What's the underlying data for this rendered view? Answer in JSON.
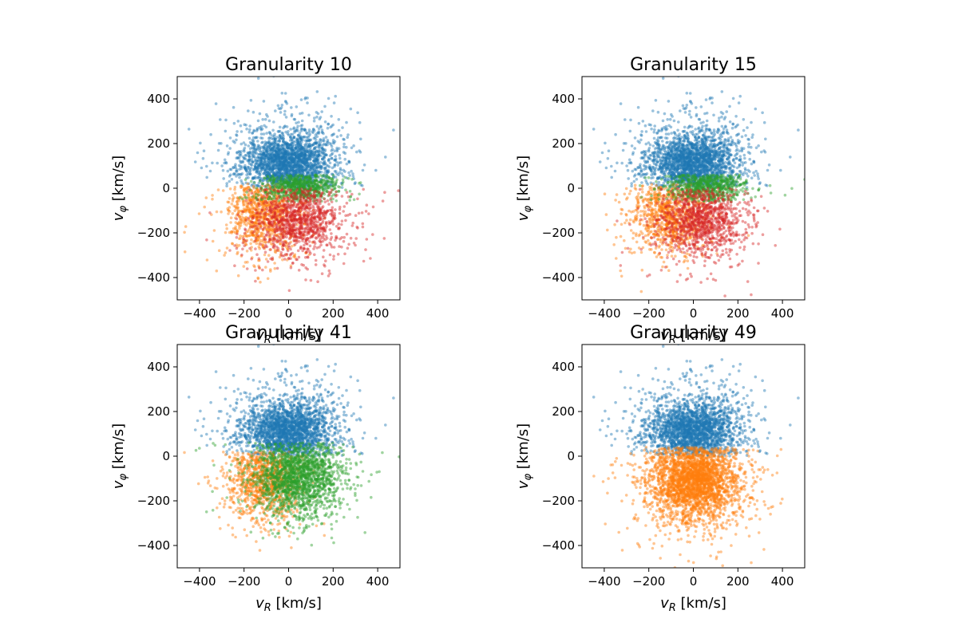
{
  "colors": {
    "cluster_0": "#1f77b4",
    "cluster_1": "#ff7f0e",
    "cluster_2": "#2ca02c",
    "cluster_3": "#d62728"
  },
  "chart_data": [
    {
      "type": "scatter",
      "title": "Granularity 10",
      "xlabel": "v_R [km/s]",
      "ylabel": "v_φ [km/s]",
      "xlim": [
        -500,
        500
      ],
      "ylim": [
        -500,
        500
      ],
      "xticks": [
        -400,
        -200,
        0,
        200,
        400
      ],
      "yticks": [
        -400,
        -200,
        0,
        200,
        400
      ],
      "grid": false,
      "series": [
        {
          "color": "#1f77b4",
          "opacity": 0.45,
          "n": 2200,
          "mean_x": 0,
          "mean_y": 115,
          "sd_x": 95,
          "sd_y": 65,
          "sd_x_tail": 160,
          "sd_y_tail": 140,
          "y_min": 0
        },
        {
          "color": "#ff7f0e",
          "opacity": 0.45,
          "n": 900,
          "mean_x": -110,
          "mean_y": -110,
          "sd_x": 80,
          "sd_y": 90,
          "sd_x_tail": 120,
          "sd_y_tail": 120,
          "y_max": 20,
          "x_max": 60
        },
        {
          "color": "#2ca02c",
          "opacity": 0.45,
          "n": 700,
          "mean_x": 60,
          "mean_y": 5,
          "sd_x": 80,
          "sd_y": 35,
          "sd_x_tail": 130,
          "sd_y_tail": 60,
          "y_min": -60,
          "y_max": 60
        },
        {
          "color": "#d62728",
          "opacity": 0.45,
          "n": 1100,
          "mean_x": 40,
          "mean_y": -140,
          "sd_x": 90,
          "sd_y": 70,
          "sd_x_tail": 140,
          "sd_y_tail": 130,
          "y_max": 0
        }
      ]
    },
    {
      "type": "scatter",
      "title": "Granularity 15",
      "xlabel": "v_R [km/s]",
      "ylabel": "v_φ [km/s]",
      "xlim": [
        -500,
        500
      ],
      "ylim": [
        -500,
        500
      ],
      "xticks": [
        -400,
        -200,
        0,
        200,
        400
      ],
      "yticks": [
        -400,
        -200,
        0,
        200,
        400
      ],
      "grid": false,
      "series": [
        {
          "color": "#1f77b4",
          "opacity": 0.45,
          "n": 2200,
          "mean_x": 0,
          "mean_y": 115,
          "sd_x": 95,
          "sd_y": 65,
          "sd_x_tail": 160,
          "sd_y_tail": 140,
          "y_min": 0
        },
        {
          "color": "#ff7f0e",
          "opacity": 0.45,
          "n": 900,
          "mean_x": -110,
          "mean_y": -110,
          "sd_x": 80,
          "sd_y": 90,
          "sd_x_tail": 120,
          "sd_y_tail": 120,
          "y_max": 20,
          "x_max": 60
        },
        {
          "color": "#2ca02c",
          "opacity": 0.45,
          "n": 700,
          "mean_x": 60,
          "mean_y": 5,
          "sd_x": 80,
          "sd_y": 35,
          "sd_x_tail": 130,
          "sd_y_tail": 60,
          "y_min": -60,
          "y_max": 60
        },
        {
          "color": "#d62728",
          "opacity": 0.45,
          "n": 1100,
          "mean_x": 40,
          "mean_y": -140,
          "sd_x": 90,
          "sd_y": 70,
          "sd_x_tail": 140,
          "sd_y_tail": 130,
          "y_max": 0
        }
      ]
    },
    {
      "type": "scatter",
      "title": "Granularity 41",
      "xlabel": "v_R [km/s]",
      "ylabel": "v_φ [km/s]",
      "xlim": [
        -500,
        500
      ],
      "ylim": [
        -500,
        500
      ],
      "xticks": [
        -400,
        -200,
        0,
        200,
        400
      ],
      "yticks": [
        -400,
        -200,
        0,
        200,
        400
      ],
      "grid": false,
      "series": [
        {
          "color": "#1f77b4",
          "opacity": 0.45,
          "n": 2200,
          "mean_x": 0,
          "mean_y": 115,
          "sd_x": 95,
          "sd_y": 65,
          "sd_x_tail": 160,
          "sd_y_tail": 140,
          "y_min": 0
        },
        {
          "color": "#ff7f0e",
          "opacity": 0.45,
          "n": 1000,
          "mean_x": -110,
          "mean_y": -100,
          "sd_x": 80,
          "sd_y": 90,
          "sd_x_tail": 120,
          "sd_y_tail": 120,
          "y_max": 20,
          "x_max": 40
        },
        {
          "color": "#2ca02c",
          "opacity": 0.45,
          "n": 1800,
          "mean_x": 40,
          "mean_y": -90,
          "sd_x": 90,
          "sd_y": 80,
          "sd_x_tail": 140,
          "sd_y_tail": 130,
          "y_max": 60
        }
      ]
    },
    {
      "type": "scatter",
      "title": "Granularity 49",
      "xlabel": "v_R [km/s]",
      "ylabel": "v_φ [km/s]",
      "xlim": [
        -500,
        500
      ],
      "ylim": [
        -500,
        500
      ],
      "xticks": [
        -400,
        -200,
        0,
        200,
        400
      ],
      "yticks": [
        -400,
        -200,
        0,
        200,
        400
      ],
      "grid": false,
      "series": [
        {
          "color": "#1f77b4",
          "opacity": 0.45,
          "n": 2200,
          "mean_x": 0,
          "mean_y": 115,
          "sd_x": 95,
          "sd_y": 65,
          "sd_x_tail": 160,
          "sd_y_tail": 140,
          "y_min": 0
        },
        {
          "color": "#ff7f0e",
          "opacity": 0.45,
          "n": 2800,
          "mean_x": 0,
          "mean_y": -110,
          "sd_x": 95,
          "sd_y": 85,
          "sd_x_tail": 150,
          "sd_y_tail": 140,
          "y_max": 40
        }
      ]
    }
  ]
}
